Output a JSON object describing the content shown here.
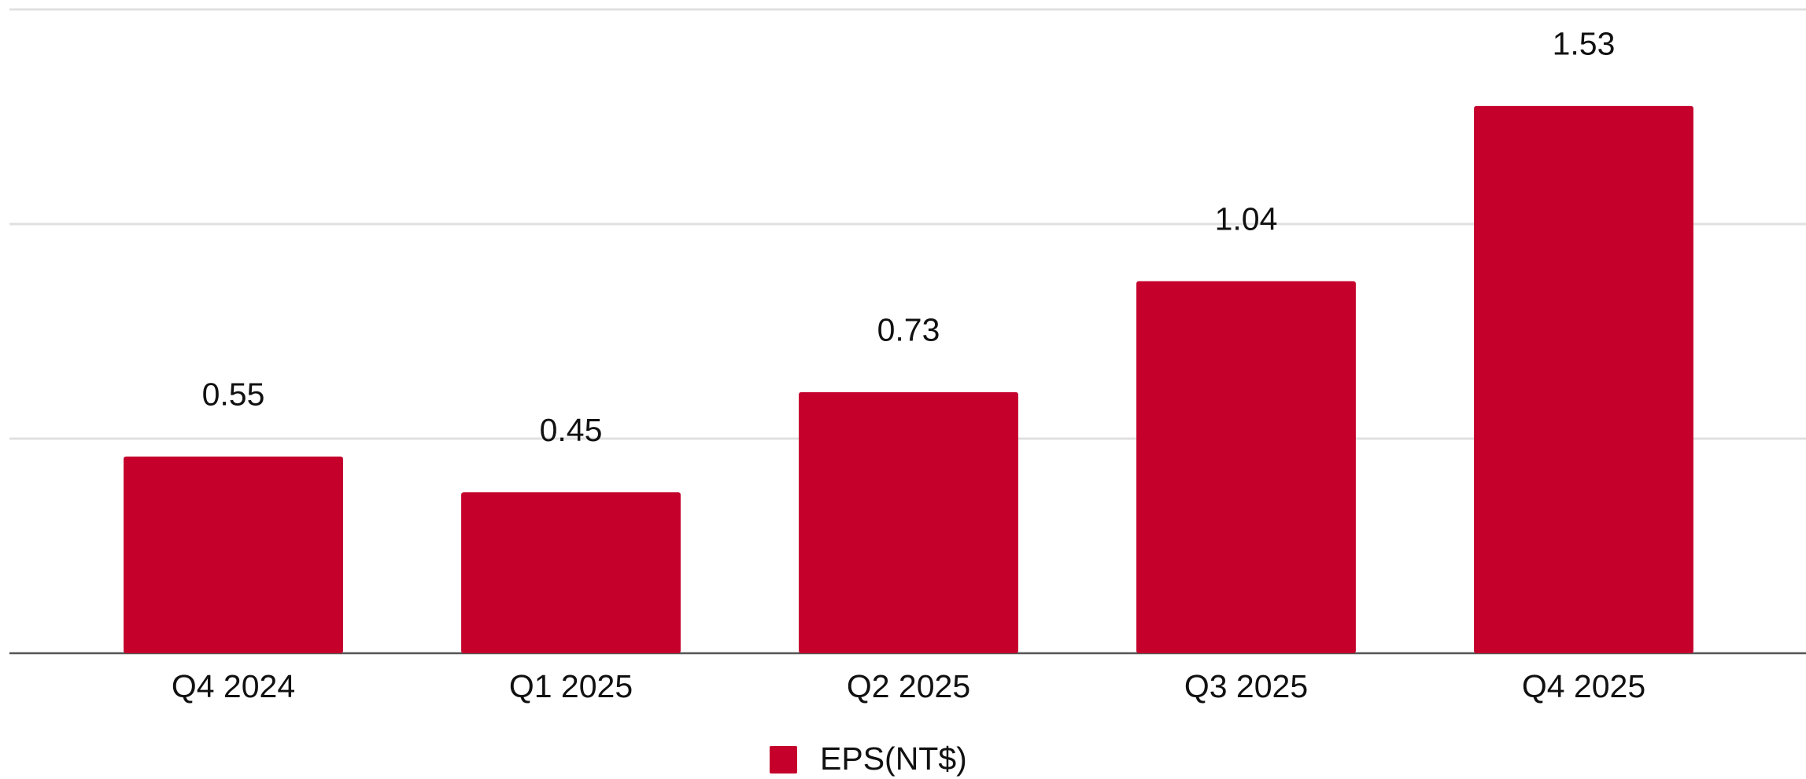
{
  "chart_data": {
    "type": "bar",
    "categories": [
      "Q4 2024",
      "Q1 2025",
      "Q2 2025",
      "Q3 2025",
      "Q4 2025"
    ],
    "series": [
      {
        "name": "EPS(NT$)",
        "color": "#c4002b",
        "values": [
          0.55,
          0.45,
          0.73,
          1.04,
          1.53
        ]
      }
    ],
    "ylim": [
      0,
      1.8
    ],
    "yticks": [
      0,
      0.6,
      1.2,
      1.8
    ],
    "grid": true,
    "legend": "bottom"
  }
}
